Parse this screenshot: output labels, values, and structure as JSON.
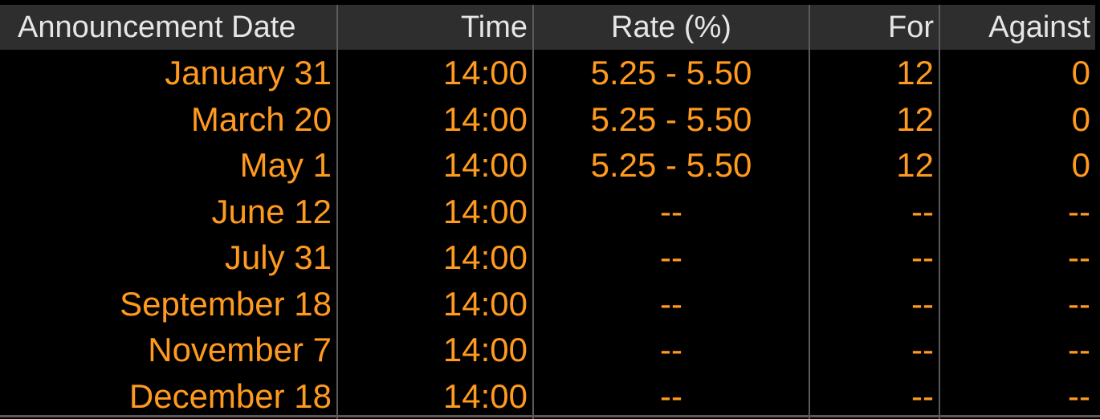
{
  "table": {
    "headers": {
      "date": "Announcement Date",
      "time": "Time",
      "rate": "Rate (%)",
      "for": "For",
      "against": "Against"
    },
    "rows": [
      {
        "date": "January 31",
        "time": "14:00",
        "rate": "5.25 - 5.50",
        "for": "12",
        "against": "0"
      },
      {
        "date": "March 20",
        "time": "14:00",
        "rate": "5.25 - 5.50",
        "for": "12",
        "against": "0"
      },
      {
        "date": "May 1",
        "time": "14:00",
        "rate": "5.25 - 5.50",
        "for": "12",
        "against": "0"
      },
      {
        "date": "June 12",
        "time": "14:00",
        "rate": "--",
        "for": "--",
        "against": "--"
      },
      {
        "date": "July 31",
        "time": "14:00",
        "rate": "--",
        "for": "--",
        "against": "--"
      },
      {
        "date": "September 18",
        "time": "14:00",
        "rate": "--",
        "for": "--",
        "against": "--"
      },
      {
        "date": "November 7",
        "time": "14:00",
        "rate": "--",
        "for": "--",
        "against": "--"
      },
      {
        "date": "December 18",
        "time": "14:00",
        "rate": "--",
        "for": "--",
        "against": "--"
      }
    ]
  },
  "colors": {
    "background": "#000000",
    "header_background": "#2e2e2e",
    "header_text": "#e6e6e6",
    "cell_text": "#ff9a1f",
    "divider": "#5a5a5a"
  }
}
